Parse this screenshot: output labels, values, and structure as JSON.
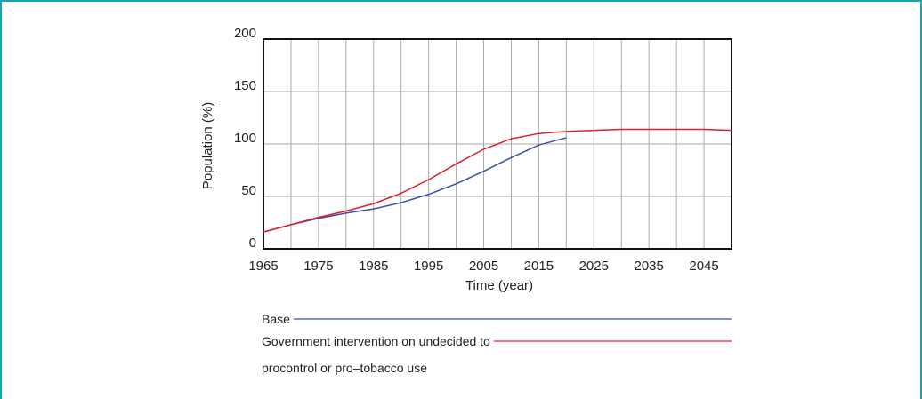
{
  "chart_data": {
    "type": "line",
    "x_label": "Time (year)",
    "y_label": "Population (%)",
    "x": [
      1965,
      1970,
      1975,
      1980,
      1985,
      1990,
      1995,
      2000,
      2005,
      2010,
      2015,
      2020,
      2025,
      2030,
      2035,
      2040,
      2045,
      2050
    ],
    "series": [
      {
        "name": "Base",
        "color": "#3a4fa8",
        "values": [
          16,
          23,
          29,
          34,
          38,
          44,
          52,
          62,
          74,
          87,
          99,
          106,
          null,
          null,
          null,
          null,
          null,
          null
        ]
      },
      {
        "name": "Government intervention on undecided to procontrol or pro–tobacco use",
        "color": "#e0202a",
        "values": [
          16,
          23,
          30,
          36,
          43,
          53,
          66,
          81,
          95,
          105,
          110,
          112,
          113,
          114,
          114,
          114,
          114,
          113
        ]
      }
    ],
    "xlim": [
      1965,
      2050
    ],
    "xticks": [
      1965,
      1975,
      1985,
      1995,
      2005,
      2015,
      2025,
      2035,
      2045
    ],
    "xminor_ticks": [
      1970,
      1980,
      1990,
      2000,
      2010,
      2020,
      2030,
      2040
    ],
    "ylim": [
      0,
      200
    ],
    "yticks": [
      0,
      50,
      100,
      150,
      200
    ],
    "grid": true
  }
}
